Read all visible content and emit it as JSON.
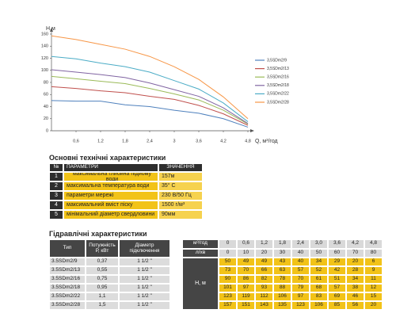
{
  "chart_data": {
    "type": "line",
    "y_label": "Н,м",
    "x_label": "Q, м³/год",
    "x": [
      0,
      0.6,
      1.2,
      1.8,
      2.4,
      3,
      3.6,
      4.2,
      4.8
    ],
    "xlim": [
      0,
      4.8
    ],
    "xticks": [
      {
        "value": 0.6,
        "label": "0,6"
      },
      {
        "value": 1.2,
        "label": "1,2"
      },
      {
        "value": 1.8,
        "label": "1,8"
      },
      {
        "value": 2.4,
        "label": "2,4"
      },
      3,
      {
        "value": 3.6,
        "label": "3,6"
      },
      {
        "value": 4.2,
        "label": "4,2"
      },
      {
        "value": 4.8,
        "label": "4,8"
      }
    ],
    "ylim": [
      0,
      160
    ],
    "yticks": [
      0,
      20,
      40,
      60,
      80,
      100,
      120,
      140,
      160
    ],
    "series": [
      {
        "name": "3,5SDm2/9",
        "color": "#4f81bd",
        "values": [
          50,
          49,
          49,
          43,
          40,
          34,
          29,
          20,
          6
        ]
      },
      {
        "name": "3,5SDm2/13",
        "color": "#c0504d",
        "values": [
          73,
          70,
          66,
          63,
          57,
          52,
          42,
          28,
          9
        ]
      },
      {
        "name": "3,5SDm2/16",
        "color": "#9bbb59",
        "values": [
          90,
          86,
          82,
          78,
          70,
          61,
          51,
          34,
          11
        ]
      },
      {
        "name": "3,5SDm2/18",
        "color": "#8064a2",
        "values": [
          101,
          97,
          93,
          88,
          79,
          68,
          57,
          38,
          12
        ]
      },
      {
        "name": "3,5SDm2/22",
        "color": "#4bacc6",
        "values": [
          123,
          119,
          112,
          106,
          97,
          83,
          69,
          46,
          15
        ]
      },
      {
        "name": "3,5SDm2/28",
        "color": "#f79646",
        "values": [
          157,
          151,
          143,
          135,
          123,
          106,
          85,
          56,
          20
        ]
      }
    ]
  },
  "specs": {
    "title": "Основні технічні характеристики",
    "header": [
      "№",
      "ПАРАМЕТРИ",
      "ЗНАЧЕННЯ"
    ],
    "rows": [
      [
        "1",
        "максимальна глибина підйому води",
        "157м"
      ],
      [
        "2",
        "максимальна температура води",
        "35° C"
      ],
      [
        "3",
        "параметри мережі",
        "230 В/50 Гц"
      ],
      [
        "4",
        "максимальний вміст піску",
        "1500 г/м³"
      ],
      [
        "5",
        "мінімальний діаметр свердловини",
        "90мм"
      ]
    ]
  },
  "hydraulic": {
    "title": "Гідравлічні характеристики",
    "header": [
      "Тип",
      "Потужність Р, кВт",
      "Діаметр підключення"
    ],
    "rows": [
      [
        "3.5SDm2/9",
        "0,37",
        "1 1/2 \""
      ],
      [
        "3.5SDm2/13",
        "0,55",
        "1 1/2 \""
      ],
      [
        "3.5SDm2/16",
        "0,75",
        "1 1/2 \""
      ],
      [
        "3.5SDm2/18",
        "0,95",
        "1 1/2 \""
      ],
      [
        "3.5SDm2/22",
        "1,1",
        "1 1/2 \""
      ],
      [
        "3.5SDm2/28",
        "1,5",
        "1 1/2 \""
      ]
    ],
    "flow_units": [
      "м³/год",
      "л/хв"
    ],
    "flow_m3h": [
      "0",
      "0,6",
      "1,2",
      "1,8",
      "2,4",
      "3,0",
      "3,6",
      "4,2",
      "4,8"
    ],
    "flow_lpm": [
      "0",
      "10",
      "20",
      "30",
      "40",
      "50",
      "60",
      "70",
      "80"
    ],
    "head_label": "Н, м",
    "head": [
      [
        50,
        49,
        49,
        43,
        40,
        34,
        29,
        20,
        6
      ],
      [
        73,
        70,
        66,
        63,
        57,
        52,
        42,
        28,
        9
      ],
      [
        90,
        86,
        82,
        78,
        70,
        61,
        51,
        34,
        11
      ],
      [
        101,
        97,
        93,
        88,
        79,
        68,
        57,
        38,
        12
      ],
      [
        123,
        119,
        112,
        106,
        97,
        83,
        69,
        46,
        15
      ],
      [
        157,
        151,
        143,
        135,
        123,
        106,
        85,
        56,
        20
      ]
    ]
  }
}
